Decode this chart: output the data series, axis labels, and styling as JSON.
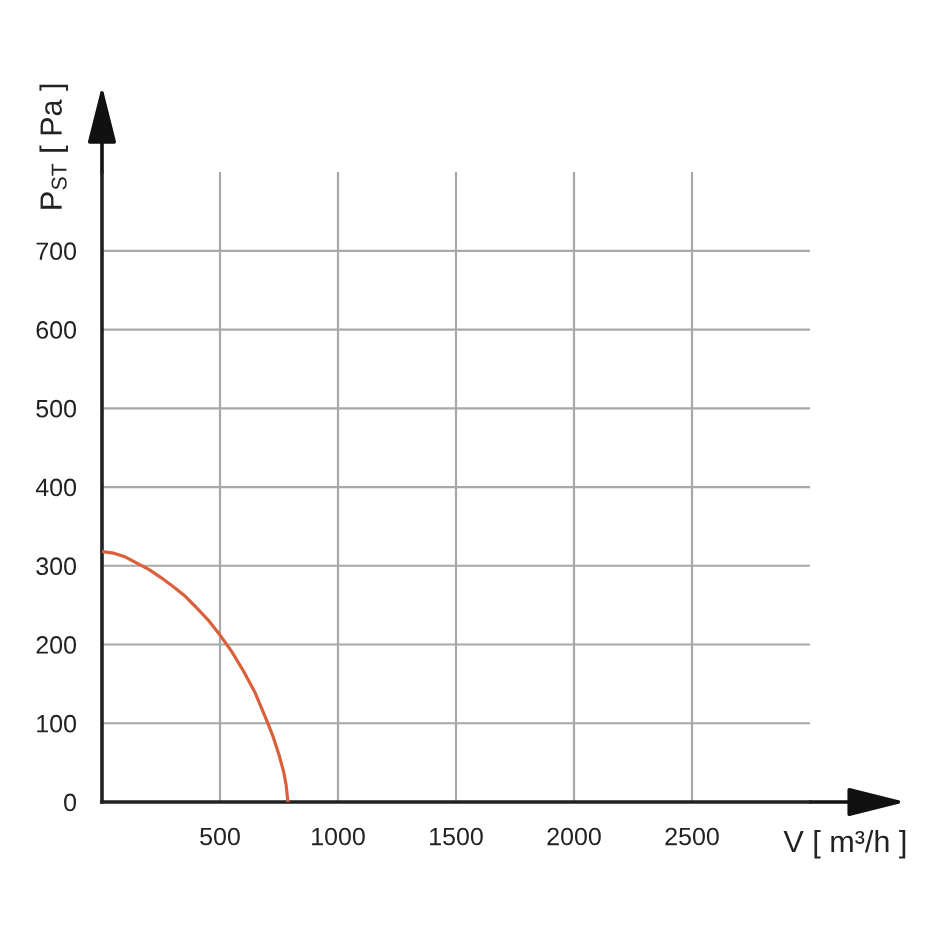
{
  "chart_data": {
    "type": "line",
    "xlabel": "V [ m³/h ]",
    "ylabel": "P$_{ST}$ [ Pa ]",
    "x": [
      0,
      50,
      100,
      150,
      200,
      250,
      300,
      350,
      400,
      450,
      500,
      550,
      600,
      650,
      700,
      725,
      750,
      770,
      780,
      788
    ],
    "values": [
      318,
      316,
      311,
      303,
      295,
      285,
      274,
      262,
      247,
      231,
      212,
      191,
      166,
      138,
      102,
      83,
      60,
      38,
      22,
      0
    ],
    "color": "#d9603b",
    "xlim": [
      0,
      3000
    ],
    "ylim": [
      0,
      800
    ],
    "xticks": [
      500,
      1000,
      1500,
      2000,
      2500
    ],
    "yticks": [
      0,
      100,
      200,
      300,
      400,
      500,
      600,
      700
    ],
    "grid": true
  }
}
